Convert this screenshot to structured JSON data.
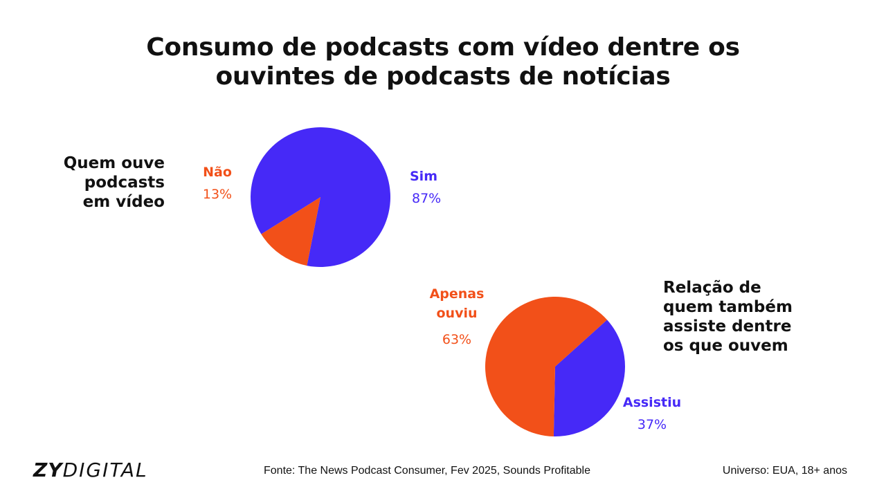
{
  "title": [
    "Consumo de podcasts com vídeo dentre os",
    "ouvintes de podcasts de notícias"
  ],
  "chart_data": [
    {
      "type": "pie",
      "caption": [
        "Quem ouve",
        "podcasts",
        "em vídeo"
      ],
      "slices": [
        {
          "label": "Sim",
          "value_label": "87%",
          "value": 87,
          "color": "#4629F7"
        },
        {
          "label": "Não",
          "value_label": "13%",
          "value": 13,
          "color": "#F25019"
        }
      ]
    },
    {
      "type": "pie",
      "caption": [
        "Relação de",
        "quem também",
        "assiste dentre",
        "os que ouvem"
      ],
      "slices": [
        {
          "label": "Assistiu",
          "value_label": "37%",
          "value": 37,
          "color": "#4629F7"
        },
        {
          "label": "Apenas ouviu",
          "label_lines": [
            "Apenas",
            "ouviu"
          ],
          "value_label": "63%",
          "value": 63,
          "color": "#F25019"
        }
      ]
    }
  ],
  "footer": {
    "logo_bold": "ZY",
    "logo_light": "DIGITAL",
    "source": "Fonte: The News Podcast Consumer, Fev 2025, Sounds Profitable",
    "universe": "Universo: EUA, 18+ anos"
  }
}
